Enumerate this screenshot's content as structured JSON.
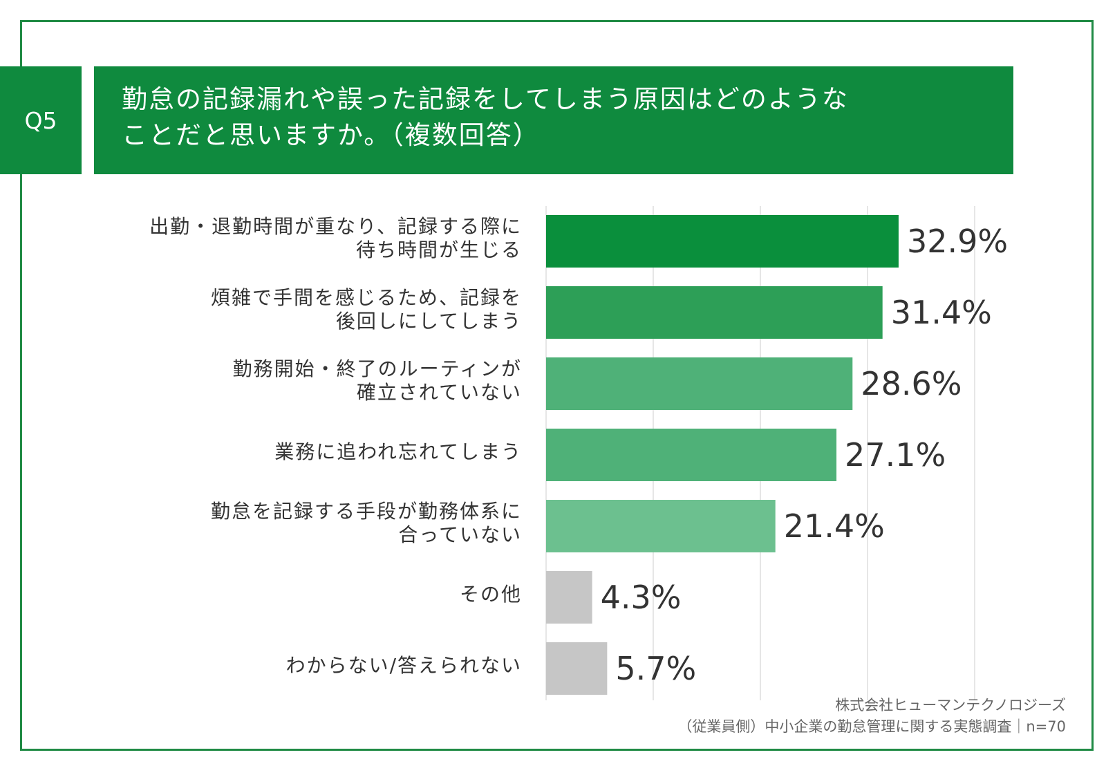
{
  "question": {
    "number": "Q5",
    "title_lines": [
      "勤怠の記録漏れや誤った記録をしてしまう原因はどのような",
      "ことだと思いますか。（複数回答）"
    ]
  },
  "colors": {
    "header_bg": "#0f8a3e",
    "frame": "#1f8a44",
    "grid": "#dddddd",
    "value_text": "#333333"
  },
  "chart_data": {
    "type": "bar",
    "orientation": "horizontal",
    "title": "勤怠の記録漏れや誤った記録をしてしまう原因はどのようなことだと思いますか。（複数回答）",
    "categories": [
      [
        "出勤・退勤時間が重なり、記録する際に",
        "待ち時間が生じる"
      ],
      [
        "煩雑で手間を感じるため、記録を",
        "後回しにしてしまう"
      ],
      [
        "勤務開始・終了のルーティンが",
        "確立されていない"
      ],
      [
        "業務に追われ忘れてしまう"
      ],
      [
        "勤怠を記録する手段が勤務体系に",
        "合っていない"
      ],
      [
        "その他"
      ],
      [
        "わからない/答えられない"
      ]
    ],
    "values": [
      32.9,
      31.4,
      28.6,
      27.1,
      21.4,
      4.3,
      5.7
    ],
    "value_labels": [
      "32.9%",
      "31.4%",
      "28.6%",
      "27.1%",
      "21.4%",
      "4.3%",
      "5.7%"
    ],
    "bar_colors": [
      "#0a8f3c",
      "#2d9f57",
      "#4fb178",
      "#4fb178",
      "#6cc08f",
      "#c6c6c6",
      "#c6c6c6"
    ],
    "xlim": [
      0,
      40
    ],
    "grid_ticks": [
      0,
      10,
      20,
      30,
      40
    ],
    "xlabel": "",
    "ylabel": "",
    "grid": true
  },
  "source": {
    "line1": "株式会社ヒューマンテクノロジーズ",
    "line2": "（従業員側）中小企業の勤怠管理に関する実態調査｜n=70"
  }
}
